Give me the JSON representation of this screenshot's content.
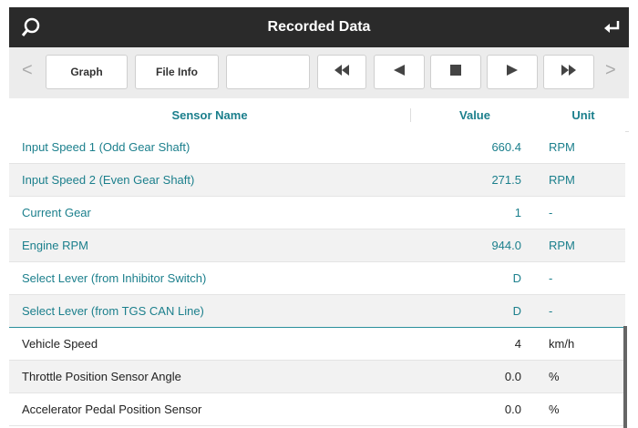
{
  "header": {
    "title": "Recorded Data"
  },
  "toolbar": {
    "buttons": [
      "Graph",
      "File Info"
    ]
  },
  "table": {
    "columns": [
      "Sensor Name",
      "Value",
      "Unit"
    ],
    "rows": [
      [
        "Input Speed 1 (Odd Gear Shaft)",
        "660.4",
        "RPM"
      ],
      [
        "Input Speed 2 (Even Gear Shaft)",
        "271.5",
        "RPM"
      ],
      [
        "Current Gear",
        "1",
        "-"
      ],
      [
        "Engine RPM",
        "944.0",
        "RPM"
      ],
      [
        "Select Lever (from Inhibitor Switch)",
        "D",
        "-"
      ],
      [
        "Select Lever (from TGS CAN Line)",
        "D",
        "-"
      ],
      [
        "Vehicle Speed",
        "4",
        "km/h"
      ],
      [
        "Throttle Position Sensor Angle",
        "0.0",
        "%"
      ],
      [
        "Accelerator Pedal Position Sensor",
        "0.0",
        "%"
      ]
    ],
    "highlighted_rows": 6
  }
}
